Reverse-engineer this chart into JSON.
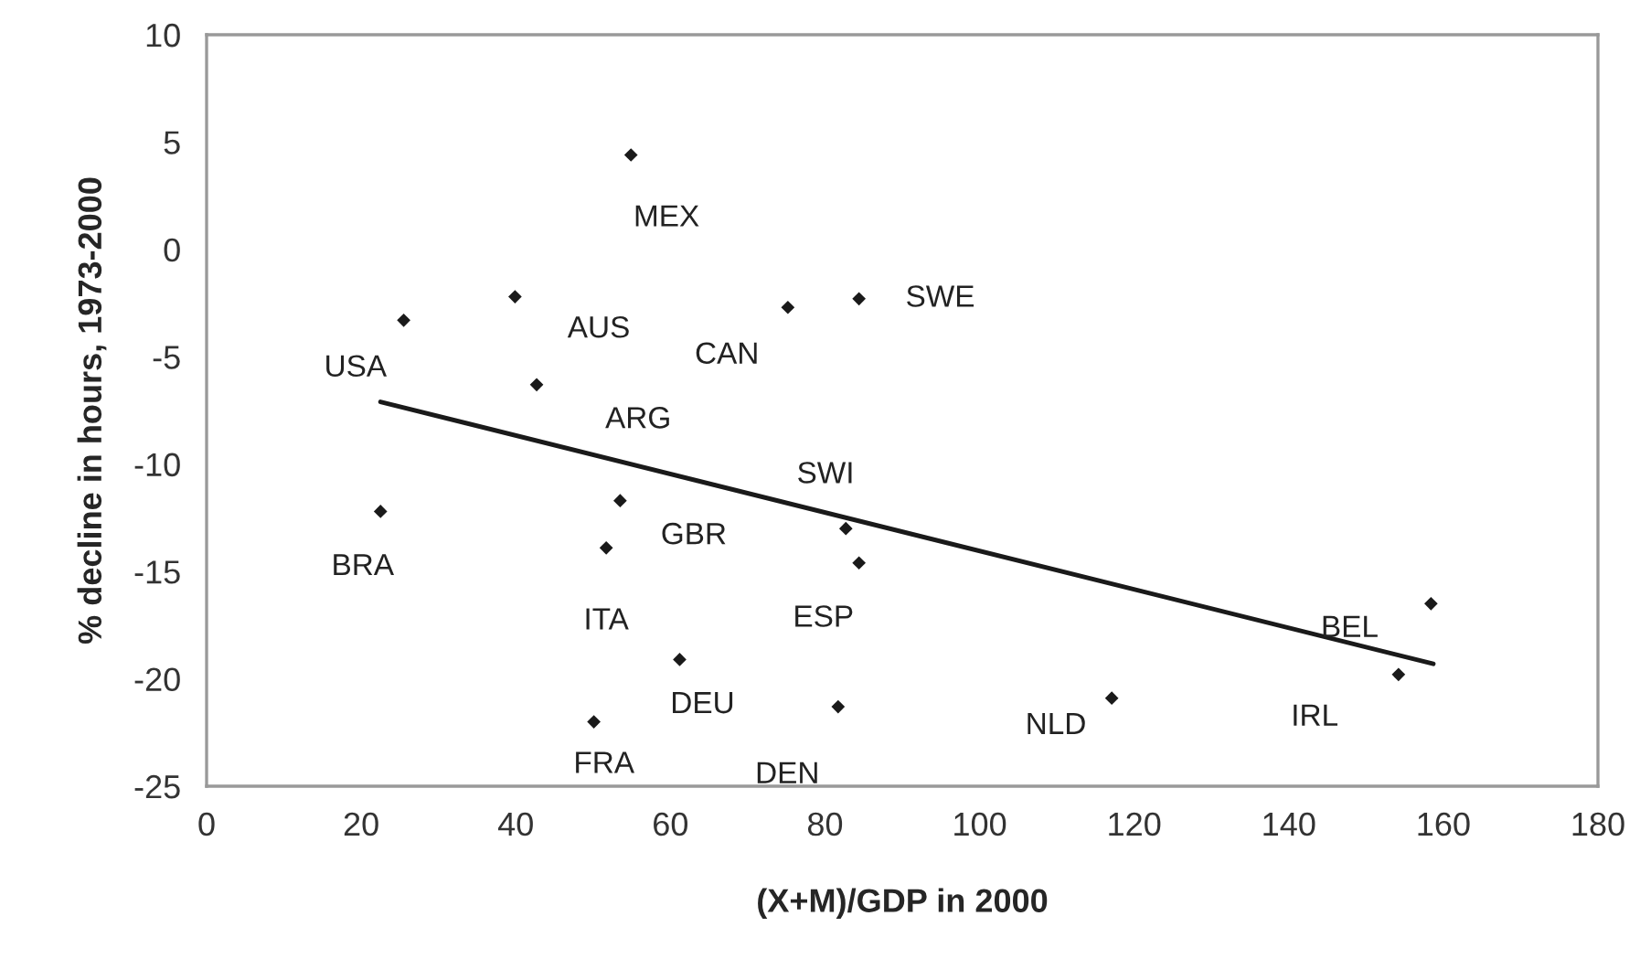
{
  "chart_data": {
    "type": "scatter",
    "xlabel": "(X+M)/GDP in 2000",
    "ylabel": "% decline in hours, 1973-2000",
    "xlim": [
      0,
      180
    ],
    "xticks": [
      0,
      20,
      40,
      60,
      80,
      100,
      120,
      140,
      160,
      180
    ],
    "ylim": [
      -25,
      10
    ],
    "yticks": [
      -25,
      -20,
      -15,
      -10,
      -5,
      0,
      5,
      10
    ],
    "grid": false,
    "legend": false,
    "marker": "diamond",
    "series": [
      {
        "color": "#1a1a1a",
        "x": [
          54.9,
          39.9,
          25.5,
          75.2,
          84.4,
          42.7,
          22.5,
          53.5,
          51.7,
          82.7,
          84.4,
          61.2,
          50.1,
          81.7,
          158.4,
          154.2,
          117.1
        ],
        "values": [
          4.4,
          -2.2,
          -3.3,
          -2.7,
          -2.3,
          -6.3,
          -12.2,
          -11.7,
          -13.9,
          -13.0,
          -14.6,
          -19.1,
          -22.0,
          -21.3,
          -16.5,
          -19.8,
          -20.9
        ]
      },
      {
        "type": "line",
        "color": "#1a1a1a",
        "line_style": "solid",
        "marker": "none",
        "x": [
          22.5,
          158.7
        ],
        "values": [
          -7.1,
          -19.3
        ]
      }
    ],
    "annotations": [
      {
        "text": "MEX",
        "x": 54.9,
        "y": 4.4
      },
      {
        "text": "AUS",
        "x": 39.9,
        "y": -2.2
      },
      {
        "text": "USA",
        "x": 25.5,
        "y": -3.3
      },
      {
        "text": "CAN",
        "x": 75.2,
        "y": -2.7
      },
      {
        "text": "SWE",
        "x": 84.4,
        "y": -2.3
      },
      {
        "text": "ARG",
        "x": 42.7,
        "y": -6.3
      },
      {
        "text": "BRA",
        "x": 22.5,
        "y": -12.2
      },
      {
        "text": "GBR",
        "x": 53.5,
        "y": -11.7
      },
      {
        "text": "ITA",
        "x": 51.7,
        "y": -13.9
      },
      {
        "text": "SWI",
        "x": 82.7,
        "y": -13.0
      },
      {
        "text": "ESP",
        "x": 84.4,
        "y": -14.6
      },
      {
        "text": "DEU",
        "x": 61.2,
        "y": -19.1
      },
      {
        "text": "FRA",
        "x": 50.1,
        "y": -22.0
      },
      {
        "text": "DEN",
        "x": 81.7,
        "y": -21.3
      },
      {
        "text": "BEL",
        "x": 158.4,
        "y": -16.5
      },
      {
        "text": "IRL",
        "x": 154.2,
        "y": -19.8
      },
      {
        "text": "NLD",
        "x": 117.1,
        "y": -20.9
      }
    ]
  }
}
